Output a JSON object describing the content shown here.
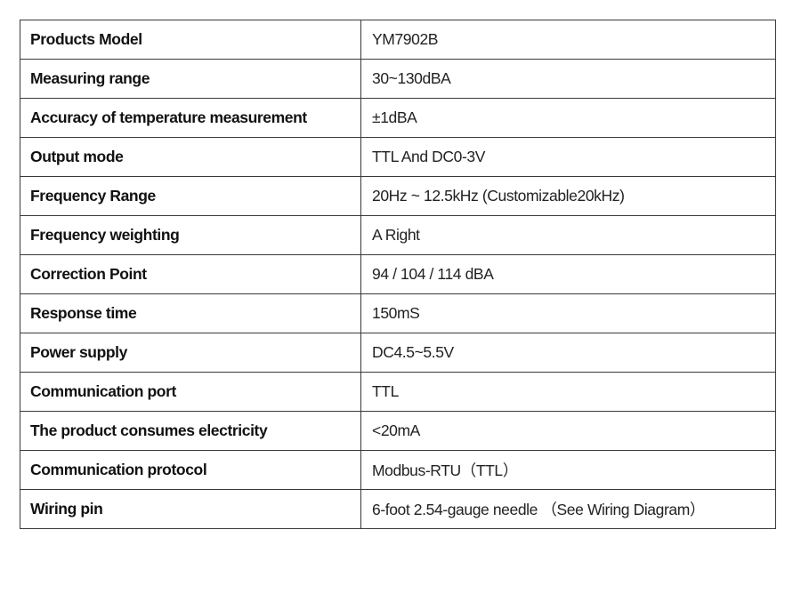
{
  "table": {
    "rows": [
      [
        "Products Model",
        "YM7902B"
      ],
      [
        "Measuring range",
        "30~130dBA"
      ],
      [
        "Accuracy of temperature measurement",
        "±1dBA"
      ],
      [
        "Output mode",
        "TTL And DC0-3V"
      ],
      [
        "Frequency Range",
        "20Hz ~ 12.5kHz (Customizable20kHz)"
      ],
      [
        "Frequency weighting",
        "A Right"
      ],
      [
        "Correction Point",
        "94 / 104 / 114 dBA"
      ],
      [
        "Response time",
        "150mS"
      ],
      [
        "Power supply",
        "DC4.5~5.5V"
      ],
      [
        "Communication port",
        "TTL"
      ],
      [
        "The product consumes electricity",
        "<20mA"
      ],
      [
        "Communication protocol",
        "Modbus-RTU（TTL）"
      ],
      [
        "Wiring pin",
        "6-foot 2.54-gauge needle （See Wiring Diagram）"
      ]
    ]
  }
}
